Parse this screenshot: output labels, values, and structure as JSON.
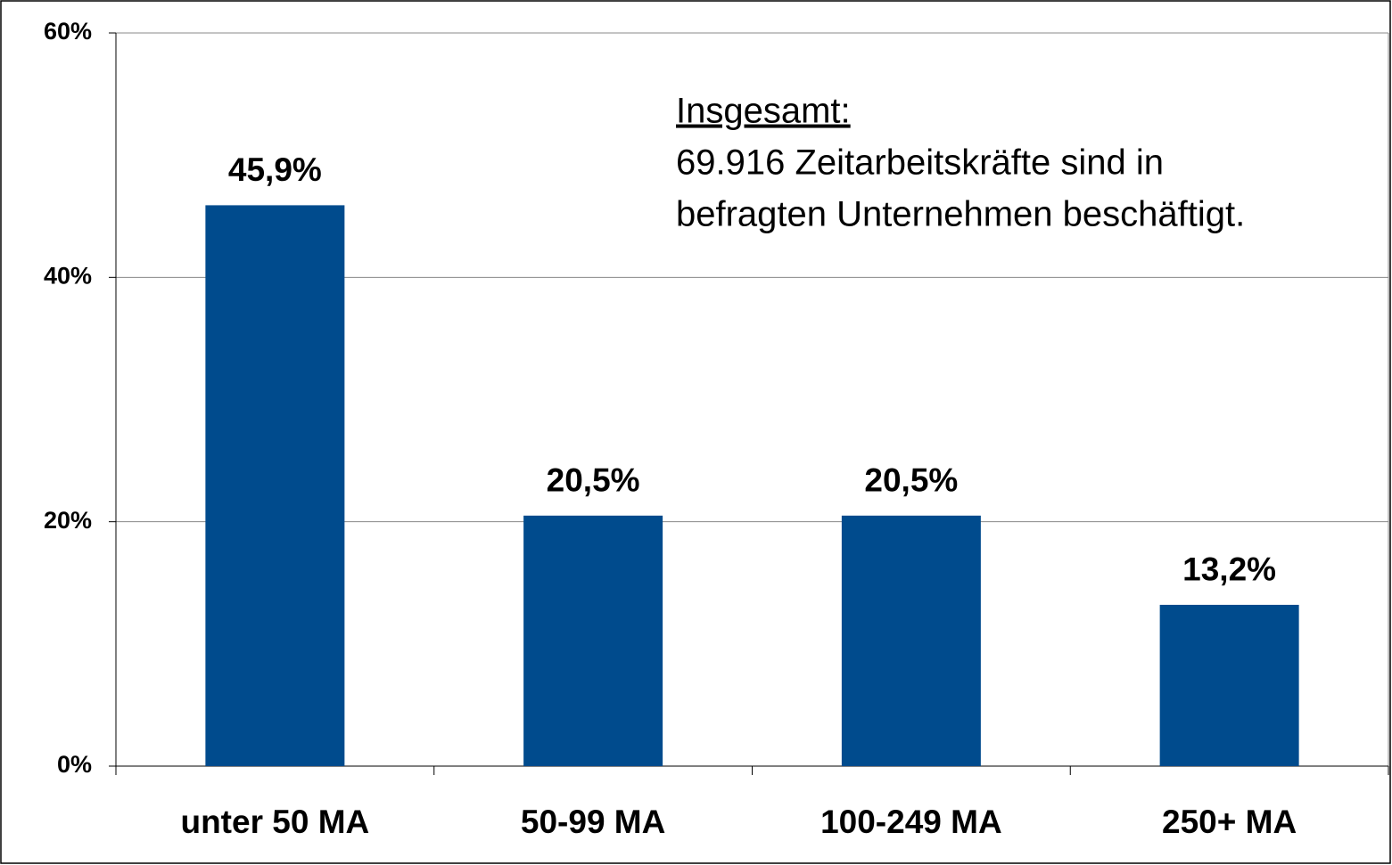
{
  "chart_data": {
    "type": "bar",
    "categories": [
      "unter 50 MA",
      "50-99 MA",
      "100-249 MA",
      "250+ MA"
    ],
    "values": [
      45.9,
      20.5,
      20.5,
      13.2
    ],
    "value_labels": [
      "45,9%",
      "20,5%",
      "20,5%",
      "13,2%"
    ],
    "color": "#004b8d",
    "ylim": [
      0,
      60
    ],
    "yticks": [
      {
        "value": 0,
        "label": "0%"
      },
      {
        "value": 20,
        "label": "20%"
      },
      {
        "value": 40,
        "label": "40%"
      },
      {
        "value": 60,
        "label": "60%"
      }
    ],
    "grid": true,
    "annotations": [
      "Insgesamt:",
      "69.916 Zeitarbeitskräfte sind in",
      "befragten Unternehmen beschäftigt."
    ]
  }
}
